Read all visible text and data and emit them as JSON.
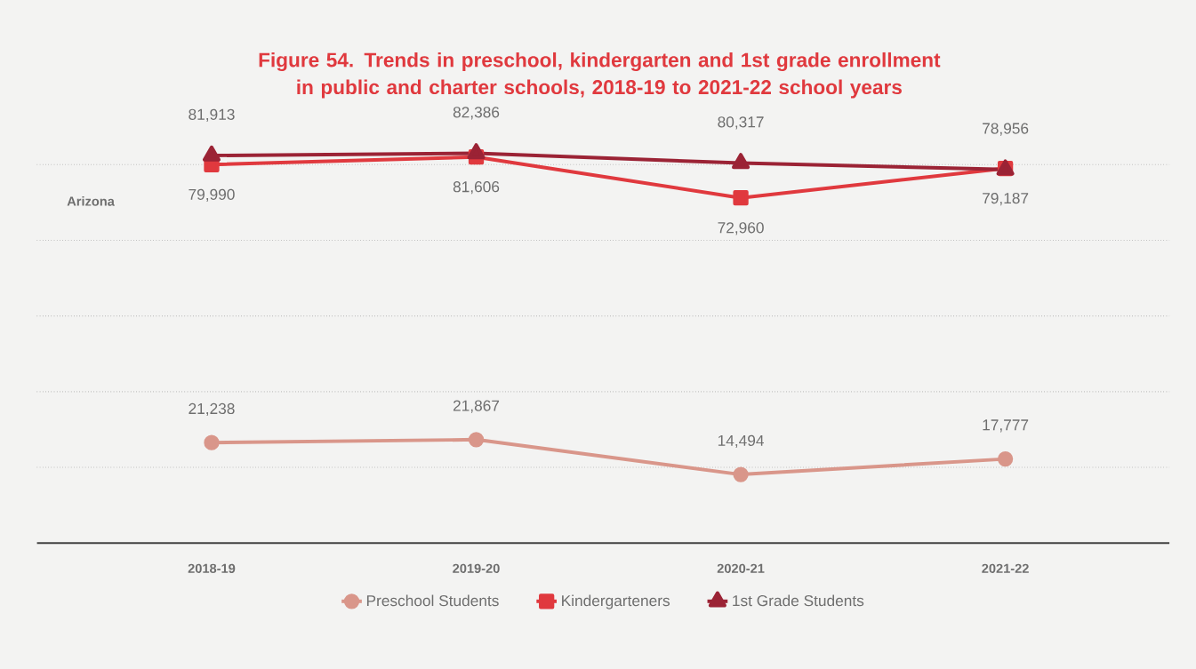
{
  "chart_data": {
    "type": "line",
    "title": "Figure 54. Trends in preschool, kindergarten and 1st grade enrollment in public and charter schools, 2018-19 to 2021-22 school years",
    "annotations": [
      "Arizona"
    ],
    "categories": [
      "2018-19",
      "2019-20",
      "2020-21",
      "2021-22"
    ],
    "series": [
      {
        "name": "Preschool Students",
        "color": "#d9968a",
        "marker": "circle",
        "values": [
          21238,
          21867,
          14494,
          17777
        ],
        "value_labels": [
          "21,238",
          "21,867",
          "14,494",
          "17,777"
        ]
      },
      {
        "name": "Kindergarteners",
        "color": "#e0393e",
        "marker": "square",
        "values": [
          79990,
          81606,
          72960,
          79187
        ],
        "value_labels": [
          "79,990",
          "81,606",
          "72,960",
          "79,187"
        ]
      },
      {
        "name": "1st Grade Students",
        "color": "#9b2335",
        "marker": "triangle",
        "values": [
          81913,
          82386,
          80317,
          78956
        ],
        "value_labels": [
          "81,913",
          "82,386",
          "80,317",
          "78,956"
        ]
      }
    ],
    "yticks": [
      {
        "value": 16000,
        "label": null
      },
      {
        "value": 32000,
        "label": null
      },
      {
        "value": 48000,
        "label": null
      },
      {
        "value": 64000,
        "label": null
      },
      {
        "value": 80000,
        "label": null
      }
    ],
    "grid": "y",
    "tick_labels": "x",
    "legend": "bottom"
  }
}
